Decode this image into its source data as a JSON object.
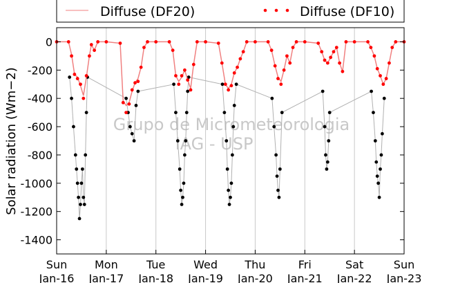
{
  "chart_data": {
    "type": "scatter",
    "title": "",
    "ylabel": "Solar radiation (Wm−2)",
    "xlabel": "",
    "ylim": [
      -1500,
      100
    ],
    "xlim": [
      0,
      7
    ],
    "yticks": [
      0,
      -200,
      -400,
      -600,
      -800,
      -1000,
      -1200,
      -1400
    ],
    "xticks": [
      {
        "x": 0,
        "day": "Sun",
        "date": "Jan-16"
      },
      {
        "x": 1,
        "day": "Mon",
        "date": "Jan-17"
      },
      {
        "x": 2,
        "day": "Tue",
        "date": "Jan-18"
      },
      {
        "x": 3,
        "day": "Wed",
        "date": "Jan-19"
      },
      {
        "x": 4,
        "day": "Thu",
        "date": "Jan-20"
      },
      {
        "x": 5,
        "day": "Fri",
        "date": "Jan-21"
      },
      {
        "x": 6,
        "day": "Sat",
        "date": "Jan-22"
      },
      {
        "x": 7,
        "day": "Sun",
        "date": "Jan-23"
      }
    ],
    "grid": "vertical",
    "legend_position": "top",
    "watermark": [
      "Grupo de Micrometeorologia",
      "IAG - USP"
    ],
    "colors": {
      "df20": "#f08080",
      "df10": "#ff0000",
      "global": "#000000",
      "global_line": "#b0b0b0",
      "grid": "#c8c8c8"
    },
    "series": [
      {
        "name": "Diffuse (DF20)",
        "style": "line",
        "x": [
          0.0,
          0.24,
          0.3,
          0.36,
          0.42,
          0.48,
          0.54,
          0.6,
          0.66,
          0.7,
          0.76,
          0.83,
          1.0,
          1.28,
          1.34,
          1.4,
          1.46,
          1.52,
          1.58,
          1.64,
          1.7,
          1.76,
          1.83,
          2.0,
          2.27,
          2.34,
          2.4,
          2.46,
          2.52,
          2.58,
          2.64,
          2.7,
          2.76,
          2.83,
          3.0,
          3.26,
          3.33,
          3.4,
          3.46,
          3.52,
          3.58,
          3.64,
          3.7,
          3.76,
          3.83,
          4.0,
          4.26,
          4.33,
          4.4,
          4.46,
          4.52,
          4.58,
          4.64,
          4.7,
          4.76,
          4.83,
          5.0,
          5.27,
          5.34,
          5.4,
          5.46,
          5.52,
          5.58,
          5.64,
          5.7,
          5.76,
          5.83,
          6.0,
          6.27,
          6.33,
          6.4,
          6.46,
          6.52,
          6.58,
          6.64,
          6.7,
          6.76,
          6.83,
          7.0
        ],
        "y": [
          0,
          0,
          -90,
          -230,
          -250,
          -310,
          -380,
          -250,
          -100,
          -20,
          -60,
          0,
          0,
          -10,
          -420,
          -450,
          -430,
          -350,
          -290,
          -260,
          -180,
          -40,
          0,
          0,
          0,
          -60,
          -240,
          -280,
          -250,
          -200,
          -270,
          -330,
          -160,
          0,
          0,
          -10,
          -150,
          -300,
          -330,
          -300,
          -220,
          -180,
          -120,
          -70,
          0,
          0,
          0,
          -60,
          -170,
          -250,
          -280,
          -200,
          -100,
          -150,
          -40,
          0,
          0,
          -10,
          -70,
          -130,
          -150,
          -110,
          -70,
          -40,
          -150,
          -210,
          0,
          0,
          0,
          -40,
          -100,
          -190,
          -240,
          -300,
          -260,
          -150,
          -40,
          0,
          0
        ]
      },
      {
        "name": "Diffuse (DF10)",
        "style": "dots",
        "x": [
          0.0,
          0.24,
          0.3,
          0.36,
          0.42,
          0.48,
          0.54,
          0.6,
          0.66,
          0.7,
          0.76,
          0.83,
          1.0,
          1.28,
          1.34,
          1.4,
          1.46,
          1.52,
          1.58,
          1.64,
          1.7,
          1.76,
          1.83,
          2.0,
          2.27,
          2.34,
          2.4,
          2.46,
          2.52,
          2.58,
          2.64,
          2.7,
          2.76,
          2.83,
          3.0,
          3.26,
          3.33,
          3.4,
          3.46,
          3.52,
          3.58,
          3.64,
          3.7,
          3.76,
          3.83,
          4.0,
          4.26,
          4.33,
          4.4,
          4.46,
          4.52,
          4.58,
          4.64,
          4.7,
          4.76,
          4.83,
          5.0,
          5.27,
          5.34,
          5.4,
          5.46,
          5.52,
          5.58,
          5.64,
          5.7,
          5.76,
          5.83,
          6.0,
          6.27,
          6.33,
          6.4,
          6.46,
          6.52,
          6.58,
          6.64,
          6.7,
          6.76,
          6.83,
          7.0
        ],
        "y": [
          0,
          0,
          -100,
          -230,
          -260,
          -300,
          -400,
          -240,
          -100,
          -20,
          -60,
          0,
          0,
          -10,
          -430,
          -500,
          -440,
          -340,
          -290,
          -280,
          -180,
          -40,
          0,
          0,
          0,
          -60,
          -240,
          -300,
          -240,
          -200,
          -270,
          -340,
          -160,
          0,
          0,
          -10,
          -150,
          -300,
          -340,
          -310,
          -220,
          -180,
          -120,
          -70,
          0,
          0,
          0,
          -60,
          -170,
          -260,
          -300,
          -200,
          -100,
          -150,
          -40,
          0,
          0,
          -10,
          -70,
          -130,
          -150,
          -110,
          -70,
          -40,
          -150,
          -210,
          0,
          0,
          0,
          -40,
          -100,
          -190,
          -240,
          -300,
          -260,
          -150,
          -40,
          0,
          0
        ]
      },
      {
        "name": "",
        "style": "dots-line",
        "x": [
          0.26,
          0.3,
          0.34,
          0.38,
          0.4,
          0.42,
          0.44,
          0.46,
          0.48,
          0.5,
          0.52,
          0.54,
          0.56,
          0.58,
          0.6,
          0.62,
          1.4,
          1.44,
          1.48,
          1.52,
          1.56,
          1.6,
          1.64,
          2.36,
          2.4,
          2.44,
          2.48,
          2.5,
          2.52,
          2.54,
          2.56,
          2.58,
          2.6,
          2.62,
          2.64,
          2.66,
          3.34,
          3.38,
          3.42,
          3.44,
          3.46,
          3.48,
          3.5,
          3.52,
          3.54,
          3.56,
          3.58,
          3.62,
          4.34,
          4.38,
          4.42,
          4.44,
          4.46,
          4.48,
          4.5,
          4.54,
          5.36,
          5.4,
          5.42,
          5.44,
          5.46,
          5.48,
          5.5,
          6.34,
          6.38,
          6.42,
          6.44,
          6.46,
          6.48,
          6.5,
          6.52,
          6.54,
          6.56,
          6.6
        ],
        "y": [
          -250,
          -400,
          -600,
          -800,
          -900,
          -1000,
          -1100,
          -1250,
          -1150,
          -1000,
          -900,
          -1100,
          -1150,
          -800,
          -500,
          -250,
          -400,
          -500,
          -600,
          -650,
          -700,
          -450,
          -350,
          -300,
          -500,
          -700,
          -900,
          -1050,
          -1150,
          -1100,
          -1000,
          -800,
          -700,
          -500,
          -350,
          -250,
          -300,
          -500,
          -700,
          -900,
          -1050,
          -1150,
          -1100,
          -1000,
          -800,
          -600,
          -450,
          -300,
          -400,
          -600,
          -800,
          -950,
          -1050,
          -1100,
          -900,
          -500,
          -350,
          -600,
          -800,
          -900,
          -850,
          -700,
          -500,
          -350,
          -500,
          -700,
          -850,
          -950,
          -1000,
          -1100,
          -900,
          -800,
          -650,
          -400
        ]
      }
    ]
  }
}
